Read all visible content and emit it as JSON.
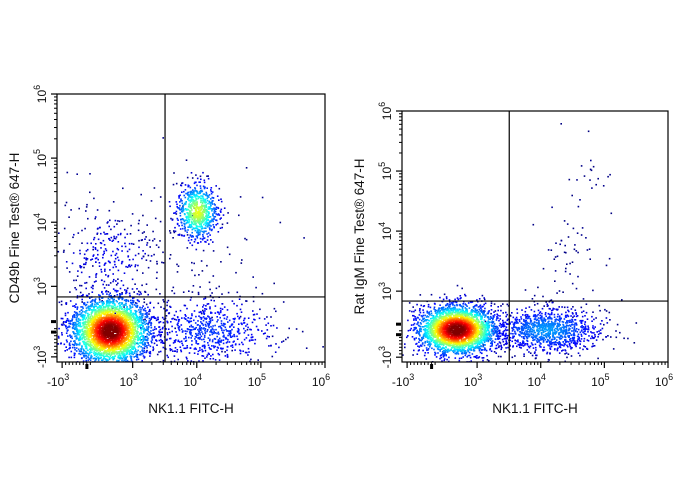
{
  "chart_data": [
    {
      "type": "scatter",
      "subtype": "flow-cytometry-density-plot",
      "xlabel": "NK1.1 FITC-H",
      "ylabel": "CD49b Fine Test® 647-H",
      "x_scale": "biexponential",
      "y_scale": "biexponential",
      "x_ticks": [
        {
          "label": "-10",
          "exp": "3",
          "value": -1000
        },
        {
          "label": "10",
          "exp": "3",
          "value": 1000
        },
        {
          "label": "10",
          "exp": "4",
          "value": 10000
        },
        {
          "label": "10",
          "exp": "5",
          "value": 100000
        },
        {
          "label": "10",
          "exp": "6",
          "value": 1000000
        }
      ],
      "y_ticks": [
        {
          "label": "-10",
          "exp": "3",
          "value": -1000
        },
        {
          "label": "10",
          "exp": "3",
          "value": 1000
        },
        {
          "label": "10",
          "exp": "4",
          "value": 10000
        },
        {
          "label": "10",
          "exp": "5",
          "value": 100000
        },
        {
          "label": "10",
          "exp": "6",
          "value": 1000000
        }
      ],
      "gate": {
        "x": 3200,
        "y": 700
      },
      "populations": [
        {
          "name": "double-negative",
          "center": [
            350,
            -250
          ],
          "density": "high"
        },
        {
          "name": "NK1.1+CD49b+",
          "center": [
            10000,
            15000
          ],
          "density": "medium"
        },
        {
          "name": "CD49b+ NK1.1-",
          "center": [
            200,
            3500
          ],
          "density": "low"
        },
        {
          "name": "NK1.1+ CD49b-",
          "center": [
            12000,
            -200
          ],
          "density": "low"
        }
      ]
    },
    {
      "type": "scatter",
      "subtype": "flow-cytometry-density-plot",
      "xlabel": "NK1.1 FITC-H",
      "ylabel": "Rat IgM Fine Test® 647-H",
      "x_scale": "biexponential",
      "y_scale": "biexponential",
      "x_ticks": [
        {
          "label": "-10",
          "exp": "3",
          "value": -1000
        },
        {
          "label": "10",
          "exp": "3",
          "value": 1000
        },
        {
          "label": "10",
          "exp": "4",
          "value": 10000
        },
        {
          "label": "10",
          "exp": "5",
          "value": 100000
        },
        {
          "label": "10",
          "exp": "6",
          "value": 1000000
        }
      ],
      "y_ticks": [
        {
          "label": "-10",
          "exp": "3",
          "value": -1000
        },
        {
          "label": "10",
          "exp": "3",
          "value": 1000
        },
        {
          "label": "10",
          "exp": "4",
          "value": 10000
        },
        {
          "label": "10",
          "exp": "5",
          "value": 100000
        },
        {
          "label": "10",
          "exp": "6",
          "value": 1000000
        }
      ],
      "gate": {
        "x": 3200,
        "y": 700
      },
      "populations": [
        {
          "name": "main",
          "center": [
            400,
            -150
          ],
          "density": "high"
        },
        {
          "name": "NK1.1+",
          "center": [
            12000,
            -150
          ],
          "density": "medium"
        },
        {
          "name": "background",
          "center": [
            40000,
            3000
          ],
          "density": "sparse"
        }
      ]
    }
  ]
}
